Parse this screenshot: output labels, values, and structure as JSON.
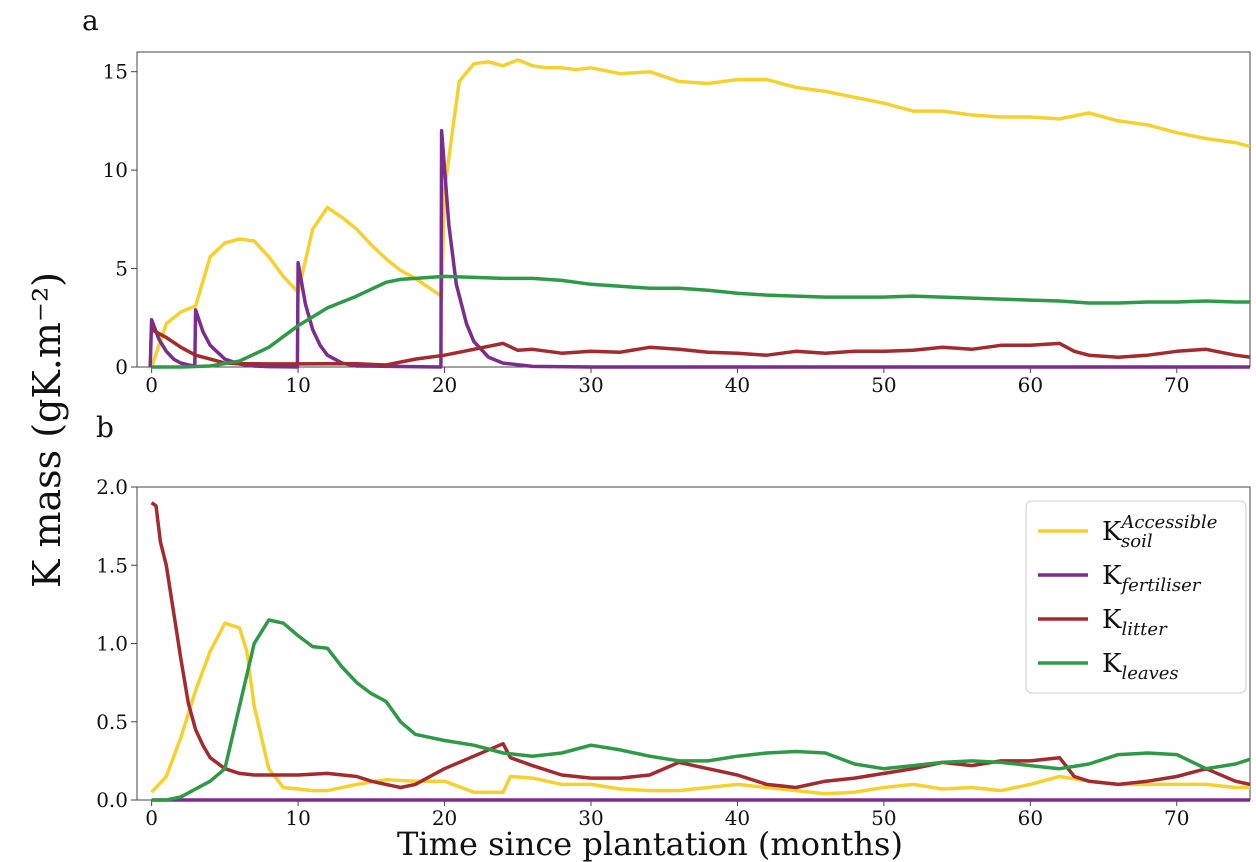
{
  "ylabel": "K mass (gK.m⁻²)",
  "xlabel": "Time since plantation (months)",
  "colors": {
    "soil": "#f5d130",
    "fertiliser": "#7b2d8e",
    "litter": "#a32a2e",
    "leaves": "#2e9a47"
  },
  "legend": [
    {
      "key": "soil",
      "base": "K",
      "sub": "soil",
      "sup": "Accessible"
    },
    {
      "key": "fertiliser",
      "base": "K",
      "sub": "fertiliser",
      "sup": ""
    },
    {
      "key": "litter",
      "base": "K",
      "sub": "litter",
      "sup": ""
    },
    {
      "key": "leaves",
      "base": "K",
      "sub": "leaves",
      "sup": ""
    }
  ],
  "chart_data": [
    {
      "type": "line",
      "panel": "a",
      "xlim": [
        -1,
        75
      ],
      "ylim": [
        0,
        16
      ],
      "xticks": [
        0,
        10,
        20,
        30,
        40,
        50,
        60,
        70
      ],
      "yticks": [
        0,
        5,
        10,
        15
      ],
      "grid": false,
      "series": [
        {
          "key": "soil",
          "x": [
            0,
            1,
            2,
            3,
            4,
            5,
            6,
            7,
            8,
            9,
            10,
            11,
            12,
            13,
            14,
            15,
            16,
            17,
            18,
            19,
            19.8,
            20,
            21,
            22,
            23,
            24,
            25,
            26,
            27,
            28,
            29,
            30,
            32,
            34,
            36,
            38,
            40,
            42,
            44,
            46,
            48,
            50,
            52,
            54,
            56,
            58,
            60,
            62,
            64,
            66,
            68,
            70,
            72,
            74,
            75
          ],
          "y": [
            0,
            2.2,
            2.8,
            3.1,
            5.6,
            6.3,
            6.5,
            6.4,
            5.6,
            4.6,
            3.8,
            7.0,
            8.1,
            7.6,
            7.0,
            6.2,
            5.5,
            4.9,
            4.5,
            4.0,
            3.6,
            9.0,
            14.5,
            15.4,
            15.5,
            15.3,
            15.6,
            15.3,
            15.2,
            15.2,
            15.1,
            15.2,
            14.9,
            15.0,
            14.5,
            14.4,
            14.6,
            14.6,
            14.2,
            14.0,
            13.7,
            13.4,
            13.0,
            13.0,
            12.8,
            12.7,
            12.7,
            12.6,
            12.9,
            12.5,
            12.3,
            11.9,
            11.6,
            11.4,
            11.2
          ]
        },
        {
          "key": "fertiliser",
          "x": [
            -0.1,
            0,
            0.5,
            1,
            1.5,
            2,
            2.5,
            2.95,
            3,
            3.5,
            4,
            5,
            6,
            7,
            8,
            9,
            9.95,
            10,
            10.5,
            11,
            11.5,
            12,
            13,
            14,
            19.75,
            19.8,
            20.3,
            20.8,
            21.5,
            22,
            23,
            24,
            26,
            30,
            40,
            50,
            60,
            70,
            75
          ],
          "y": [
            0,
            2.4,
            1.4,
            0.8,
            0.4,
            0.2,
            0.1,
            0.05,
            2.9,
            1.8,
            1.1,
            0.4,
            0.15,
            0.05,
            0.02,
            0.01,
            0,
            5.3,
            3.2,
            1.9,
            1.1,
            0.6,
            0.2,
            0.05,
            0,
            12.0,
            7.2,
            4.2,
            2.2,
            1.3,
            0.5,
            0.2,
            0.03,
            0,
            0,
            0,
            0,
            0,
            0
          ]
        },
        {
          "key": "litter",
          "x": [
            0,
            1,
            2,
            3,
            4,
            5,
            6,
            8,
            10,
            12,
            14,
            16,
            18,
            20,
            22,
            24,
            25,
            26,
            28,
            30,
            32,
            34,
            36,
            38,
            40,
            42,
            44,
            46,
            48,
            50,
            52,
            54,
            56,
            58,
            60,
            62,
            63,
            64,
            66,
            68,
            70,
            72,
            74,
            75
          ],
          "y": [
            1.9,
            1.5,
            1.0,
            0.6,
            0.4,
            0.2,
            0.17,
            0.16,
            0.16,
            0.17,
            0.17,
            0.1,
            0.4,
            0.6,
            0.9,
            1.2,
            0.85,
            0.9,
            0.7,
            0.8,
            0.75,
            1.0,
            0.9,
            0.75,
            0.7,
            0.6,
            0.8,
            0.7,
            0.8,
            0.8,
            0.85,
            1.0,
            0.9,
            1.1,
            1.1,
            1.2,
            0.8,
            0.6,
            0.5,
            0.6,
            0.8,
            0.9,
            0.6,
            0.5
          ]
        },
        {
          "key": "leaves",
          "x": [
            0,
            2,
            4,
            6,
            8,
            10,
            12,
            14,
            16,
            17,
            18,
            20,
            22,
            24,
            26,
            28,
            30,
            32,
            34,
            36,
            38,
            40,
            42,
            44,
            46,
            48,
            50,
            52,
            54,
            56,
            58,
            60,
            62,
            64,
            66,
            68,
            70,
            72,
            74,
            75
          ],
          "y": [
            0,
            0,
            0.05,
            0.3,
            1.0,
            2.1,
            3.0,
            3.6,
            4.3,
            4.45,
            4.5,
            4.6,
            4.55,
            4.5,
            4.5,
            4.4,
            4.2,
            4.1,
            4.0,
            4.0,
            3.9,
            3.75,
            3.65,
            3.6,
            3.55,
            3.55,
            3.55,
            3.6,
            3.55,
            3.5,
            3.45,
            3.4,
            3.35,
            3.25,
            3.25,
            3.3,
            3.3,
            3.35,
            3.3,
            3.3
          ]
        }
      ]
    },
    {
      "type": "line",
      "panel": "b",
      "xlim": [
        -1,
        75
      ],
      "ylim": [
        0,
        2.0
      ],
      "xticks": [
        0,
        10,
        20,
        30,
        40,
        50,
        60,
        70
      ],
      "yticks": [
        0.0,
        0.5,
        1.0,
        1.5,
        2.0
      ],
      "grid": false,
      "legend_position": "top-right",
      "series": [
        {
          "key": "soil",
          "x": [
            0,
            1,
            2,
            3,
            4,
            5,
            6,
            6.5,
            7,
            8,
            9,
            10,
            11,
            12,
            14,
            16,
            18,
            20,
            22,
            24,
            24.5,
            26,
            28,
            30,
            32,
            34,
            36,
            38,
            40,
            42,
            44,
            46,
            48,
            50,
            52,
            54,
            56,
            58,
            60,
            62,
            64,
            66,
            68,
            70,
            72,
            74,
            75
          ],
          "y": [
            0.05,
            0.15,
            0.4,
            0.7,
            0.95,
            1.13,
            1.1,
            0.95,
            0.6,
            0.2,
            0.08,
            0.07,
            0.06,
            0.06,
            0.1,
            0.13,
            0.12,
            0.12,
            0.05,
            0.05,
            0.15,
            0.14,
            0.1,
            0.1,
            0.07,
            0.06,
            0.06,
            0.08,
            0.1,
            0.08,
            0.06,
            0.04,
            0.05,
            0.08,
            0.1,
            0.07,
            0.08,
            0.06,
            0.1,
            0.15,
            0.12,
            0.1,
            0.1,
            0.1,
            0.1,
            0.08,
            0.08
          ]
        },
        {
          "key": "fertiliser",
          "x": [
            0,
            75
          ],
          "y": [
            0,
            0
          ]
        },
        {
          "key": "litter",
          "x": [
            0,
            0.3,
            0.6,
            1,
            1.5,
            2,
            2.5,
            3,
            3.5,
            4,
            5,
            6,
            7,
            8,
            10,
            12,
            14,
            15,
            16,
            17,
            18,
            19,
            20,
            22,
            24,
            24.5,
            26,
            28,
            30,
            32,
            34,
            36,
            38,
            40,
            42,
            44,
            46,
            48,
            50,
            52,
            54,
            56,
            58,
            60,
            62,
            63,
            64,
            66,
            68,
            70,
            72,
            74,
            75
          ],
          "y": [
            1.9,
            1.88,
            1.65,
            1.5,
            1.2,
            0.9,
            0.62,
            0.45,
            0.35,
            0.27,
            0.2,
            0.17,
            0.16,
            0.16,
            0.16,
            0.17,
            0.15,
            0.12,
            0.1,
            0.08,
            0.1,
            0.15,
            0.2,
            0.28,
            0.36,
            0.27,
            0.22,
            0.16,
            0.14,
            0.14,
            0.16,
            0.24,
            0.2,
            0.16,
            0.1,
            0.08,
            0.12,
            0.14,
            0.17,
            0.2,
            0.24,
            0.22,
            0.25,
            0.25,
            0.27,
            0.15,
            0.12,
            0.1,
            0.12,
            0.15,
            0.2,
            0.12,
            0.1
          ]
        },
        {
          "key": "leaves",
          "x": [
            0,
            1,
            2,
            3,
            4,
            5,
            6,
            7,
            8,
            9,
            10,
            11,
            12,
            13,
            14,
            15,
            16,
            17,
            18,
            19,
            20,
            22,
            24,
            26,
            28,
            30,
            32,
            34,
            36,
            38,
            40,
            42,
            44,
            46,
            48,
            50,
            52,
            54,
            56,
            58,
            60,
            62,
            64,
            66,
            68,
            70,
            72,
            74,
            75
          ],
          "y": [
            0,
            0.0,
            0.02,
            0.07,
            0.12,
            0.2,
            0.6,
            1.0,
            1.15,
            1.13,
            1.05,
            0.98,
            0.97,
            0.85,
            0.75,
            0.68,
            0.63,
            0.5,
            0.42,
            0.4,
            0.38,
            0.35,
            0.3,
            0.28,
            0.3,
            0.35,
            0.32,
            0.28,
            0.25,
            0.25,
            0.28,
            0.3,
            0.31,
            0.3,
            0.23,
            0.2,
            0.22,
            0.24,
            0.25,
            0.24,
            0.22,
            0.2,
            0.23,
            0.29,
            0.3,
            0.29,
            0.2,
            0.23,
            0.26
          ]
        }
      ]
    }
  ]
}
